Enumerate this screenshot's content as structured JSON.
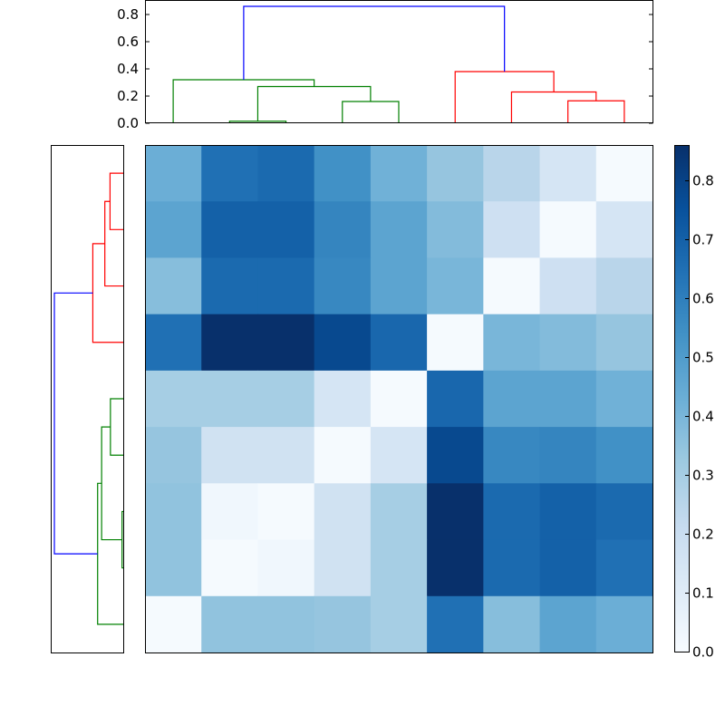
{
  "chart_data": [
    {
      "type": "heatmap",
      "title": "",
      "xlabel": "",
      "ylabel": "",
      "n_rows": 9,
      "n_cols": 9,
      "values": [
        [
          0.43,
          0.65,
          0.67,
          0.54,
          0.42,
          0.34,
          0.25,
          0.15,
          0.01
        ],
        [
          0.47,
          0.7,
          0.7,
          0.58,
          0.47,
          0.38,
          0.18,
          0.01,
          0.15
        ],
        [
          0.37,
          0.67,
          0.67,
          0.57,
          0.47,
          0.4,
          0.01,
          0.18,
          0.25
        ],
        [
          0.65,
          0.86,
          0.86,
          0.78,
          0.68,
          0.01,
          0.4,
          0.38,
          0.34
        ],
        [
          0.3,
          0.3,
          0.3,
          0.15,
          0.01,
          0.68,
          0.47,
          0.47,
          0.42
        ],
        [
          0.34,
          0.17,
          0.17,
          0.01,
          0.15,
          0.78,
          0.57,
          0.58,
          0.54
        ],
        [
          0.35,
          0.03,
          0.01,
          0.17,
          0.3,
          0.86,
          0.67,
          0.7,
          0.67
        ],
        [
          0.35,
          0.01,
          0.03,
          0.17,
          0.3,
          0.86,
          0.67,
          0.7,
          0.65
        ],
        [
          0.01,
          0.35,
          0.35,
          0.34,
          0.3,
          0.65,
          0.37,
          0.47,
          0.43
        ]
      ],
      "colormap": "Blues",
      "vmin": 0.0,
      "vmax": 0.86,
      "colorbar": {
        "ticks": [
          0.0,
          0.1,
          0.2,
          0.3,
          0.4,
          0.5,
          0.6,
          0.7,
          0.8
        ],
        "tick_labels": [
          "0.0",
          "0.1",
          "0.2",
          "0.3",
          "0.4",
          "0.5",
          "0.6",
          "0.7",
          "0.8"
        ]
      }
    },
    {
      "type": "dendrogram",
      "orientation": "top",
      "ylim": [
        0,
        0.9
      ],
      "yticks": [
        0.0,
        0.2,
        0.4,
        0.6,
        0.8
      ],
      "ytick_labels": [
        "0.0",
        "0.2",
        "0.4",
        "0.6",
        "0.8"
      ],
      "links": [
        {
          "x": [
            1.5,
            2.5
          ],
          "h": [
            0.0,
            0.015,
            0.015,
            0.0
          ],
          "color": "#008000"
        },
        {
          "x": [
            3.5,
            4.5
          ],
          "h": [
            0.0,
            0.16,
            0.16,
            0.0
          ],
          "color": "#008000"
        },
        {
          "x": [
            2,
            4
          ],
          "h": [
            0.015,
            0.27,
            0.27,
            0.16
          ],
          "color": "#008000"
        },
        {
          "x": [
            0.5,
            3
          ],
          "h": [
            0.0,
            0.32,
            0.32,
            0.27
          ],
          "color": "#008000"
        },
        {
          "x": [
            7.5,
            8.5
          ],
          "h": [
            0.0,
            0.165,
            0.165,
            0.0
          ],
          "color": "#ff0000"
        },
        {
          "x": [
            6.5,
            8
          ],
          "h": [
            0.0,
            0.23,
            0.23,
            0.165
          ],
          "color": "#ff0000"
        },
        {
          "x": [
            5.5,
            7.25
          ],
          "h": [
            0.0,
            0.38,
            0.38,
            0.23
          ],
          "color": "#ff0000"
        },
        {
          "x": [
            1.75,
            6.375
          ],
          "h": [
            0.32,
            0.86,
            0.86,
            0.38
          ],
          "color": "#0000ff"
        }
      ]
    },
    {
      "type": "dendrogram",
      "orientation": "left",
      "links": [
        {
          "y": [
            0.5,
            1.5
          ],
          "h": [
            0.0,
            0.165,
            0.165,
            0.0
          ],
          "color": "#ff0000"
        },
        {
          "y": [
            1.0,
            2.5
          ],
          "h": [
            0.165,
            0.23,
            0.23,
            0.0
          ],
          "color": "#ff0000"
        },
        {
          "y": [
            1.75,
            3.5
          ],
          "h": [
            0.23,
            0.38,
            0.38,
            0.0
          ],
          "color": "#ff0000"
        },
        {
          "y": [
            4.5,
            5.5
          ],
          "h": [
            0.0,
            0.16,
            0.16,
            0.0
          ],
          "color": "#008000"
        },
        {
          "y": [
            6.5,
            7.5
          ],
          "h": [
            0.0,
            0.015,
            0.015,
            0.0
          ],
          "color": "#008000"
        },
        {
          "y": [
            5.0,
            7.0
          ],
          "h": [
            0.16,
            0.27,
            0.27,
            0.015
          ],
          "color": "#008000"
        },
        {
          "y": [
            6.0,
            8.5
          ],
          "h": [
            0.27,
            0.32,
            0.32,
            0.0
          ],
          "color": "#008000"
        },
        {
          "y": [
            2.625,
            7.25
          ],
          "h": [
            0.38,
            0.86,
            0.86,
            0.32
          ],
          "color": "#0000ff"
        }
      ]
    }
  ]
}
